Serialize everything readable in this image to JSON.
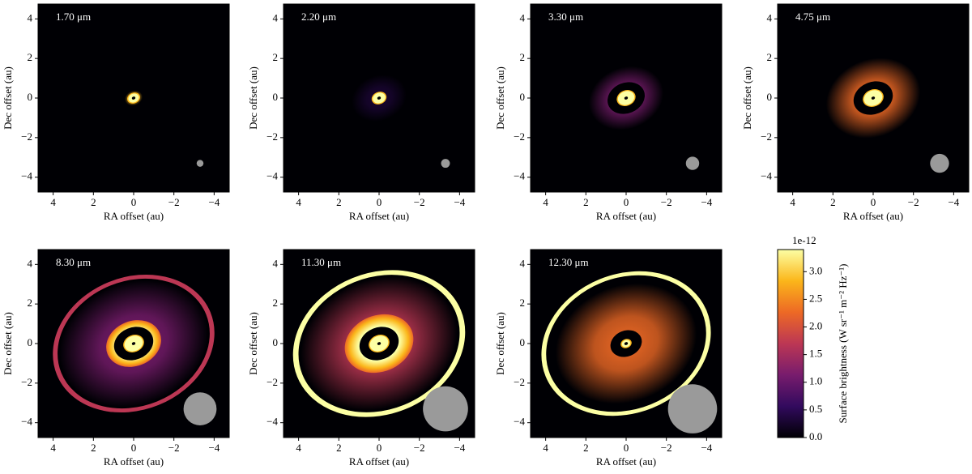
{
  "chart_data": [
    {
      "type": "image",
      "annotation": "1.70 μm",
      "xlabel": "RA offset (au)",
      "ylabel": "Dec offset (au)",
      "xlim": [
        4.75,
        -4.75
      ],
      "ylim": [
        -4.75,
        4.75
      ],
      "xticks": [
        4,
        2,
        0,
        {
          "value": -2,
          "label": "−2"
        },
        {
          "value": -4,
          "label": "−4"
        }
      ],
      "yticks": [
        {
          "value": -4,
          "label": "−4"
        },
        {
          "value": -2,
          "label": "−2"
        },
        0,
        2,
        4
      ],
      "beam": {
        "x": -3.3,
        "y": -3.3,
        "radius": 0.17
      }
    },
    {
      "type": "image",
      "annotation": "2.20 μm",
      "xlabel": "RA offset (au)",
      "ylabel": "Dec offset (au)",
      "xlim": [
        4.75,
        -4.75
      ],
      "ylim": [
        -4.75,
        4.75
      ],
      "xticks": [
        4,
        2,
        0,
        {
          "value": -2,
          "label": "−2"
        },
        {
          "value": -4,
          "label": "−4"
        }
      ],
      "yticks": [
        {
          "value": -4,
          "label": "−4"
        },
        {
          "value": -2,
          "label": "−2"
        },
        0,
        2,
        4
      ],
      "beam": {
        "x": -3.3,
        "y": -3.3,
        "radius": 0.22
      }
    },
    {
      "type": "image",
      "annotation": "3.30 μm",
      "xlabel": "RA offset (au)",
      "ylabel": "Dec offset (au)",
      "xlim": [
        4.75,
        -4.75
      ],
      "ylim": [
        -4.75,
        4.75
      ],
      "xticks": [
        4,
        2,
        0,
        {
          "value": -2,
          "label": "−2"
        },
        {
          "value": -4,
          "label": "−4"
        }
      ],
      "yticks": [
        {
          "value": -4,
          "label": "−4"
        },
        {
          "value": -2,
          "label": "−2"
        },
        0,
        2,
        4
      ],
      "beam": {
        "x": -3.3,
        "y": -3.3,
        "radius": 0.33
      }
    },
    {
      "type": "image",
      "annotation": "4.75 μm",
      "xlabel": "RA offset (au)",
      "ylabel": "Dec offset (au)",
      "xlim": [
        4.75,
        -4.75
      ],
      "ylim": [
        -4.75,
        4.75
      ],
      "xticks": [
        4,
        2,
        0,
        {
          "value": -2,
          "label": "−2"
        },
        {
          "value": -4,
          "label": "−4"
        }
      ],
      "yticks": [
        {
          "value": -4,
          "label": "−4"
        },
        {
          "value": -2,
          "label": "−2"
        },
        0,
        2,
        4
      ],
      "beam": {
        "x": -3.3,
        "y": -3.3,
        "radius": 0.47
      }
    },
    {
      "type": "image",
      "annotation": "8.30 μm",
      "xlabel": "RA offset (au)",
      "ylabel": "Dec offset (au)",
      "xlim": [
        4.75,
        -4.75
      ],
      "ylim": [
        -4.75,
        4.75
      ],
      "xticks": [
        4,
        2,
        0,
        {
          "value": -2,
          "label": "−2"
        },
        {
          "value": -4,
          "label": "−4"
        }
      ],
      "yticks": [
        {
          "value": -4,
          "label": "−4"
        },
        {
          "value": -2,
          "label": "−2"
        },
        0,
        2,
        4
      ],
      "beam": {
        "x": -3.3,
        "y": -3.3,
        "radius": 0.82
      }
    },
    {
      "type": "image",
      "annotation": "11.30 μm",
      "xlabel": "RA offset (au)",
      "ylabel": "Dec offset (au)",
      "xlim": [
        4.75,
        -4.75
      ],
      "ylim": [
        -4.75,
        4.75
      ],
      "xticks": [
        4,
        2,
        0,
        {
          "value": -2,
          "label": "−2"
        },
        {
          "value": -4,
          "label": "−4"
        }
      ],
      "yticks": [
        {
          "value": -4,
          "label": "−4"
        },
        {
          "value": -2,
          "label": "−2"
        },
        0,
        2,
        4
      ],
      "beam": {
        "x": -3.3,
        "y": -3.3,
        "radius": 1.12
      }
    },
    {
      "type": "image",
      "annotation": "12.30 μm",
      "xlabel": "RA offset (au)",
      "ylabel": "Dec offset (au)",
      "xlim": [
        4.75,
        -4.75
      ],
      "ylim": [
        -4.75,
        4.75
      ],
      "xticks": [
        4,
        2,
        0,
        {
          "value": -2,
          "label": "−2"
        },
        {
          "value": -4,
          "label": "−4"
        }
      ],
      "yticks": [
        {
          "value": -4,
          "label": "−4"
        },
        {
          "value": -2,
          "label": "−2"
        },
        0,
        2,
        4
      ],
      "beam": {
        "x": -3.3,
        "y": -3.3,
        "radius": 1.22
      }
    },
    {
      "type": "colorbar",
      "label": "Surface brightness (W sr⁻¹ m⁻² Hz⁻¹)",
      "offset_label": "1e-12",
      "ylim": [
        0,
        3.4
      ],
      "yticks": [
        {
          "value": 0,
          "label": "0.0"
        },
        0.5,
        {
          "value": 1,
          "label": "1.0"
        },
        1.5,
        {
          "value": 2,
          "label": "2.0"
        },
        2.5,
        {
          "value": 3,
          "label": "3.0"
        }
      ],
      "colors": [
        "#000004",
        "#320a5e",
        "#781c6d",
        "#bc3754",
        "#ed6925",
        "#fbb61a",
        "#fcffa4"
      ]
    }
  ]
}
